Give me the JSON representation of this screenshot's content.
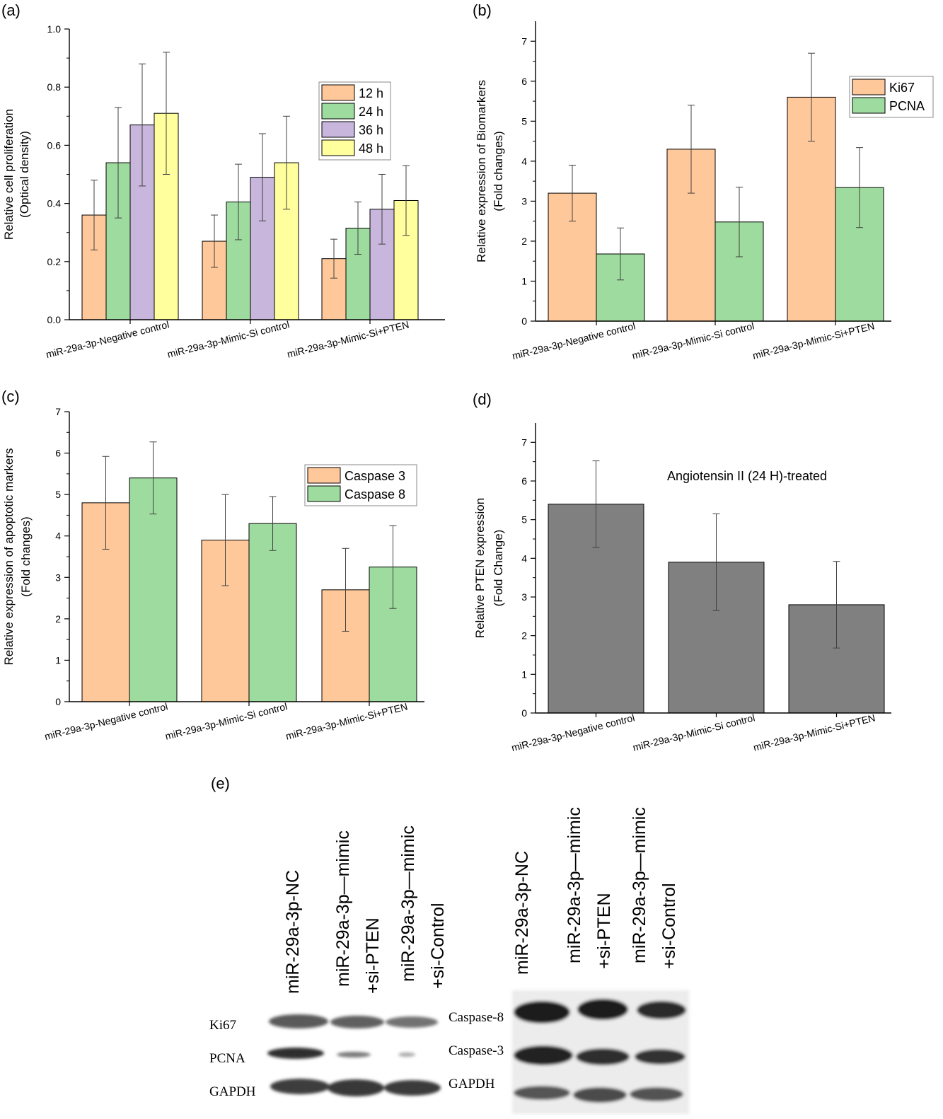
{
  "colors": {
    "orange": "#FFC89A",
    "green": "#9EDB9E",
    "purple": "#C8B6DD",
    "yellow": "#FFFF9E",
    "gray": "#808080",
    "axis": "#000000",
    "errorbar": "#404040"
  },
  "chart_data": [
    {
      "id": "a",
      "panel_label": "(a)",
      "type": "bar",
      "ylabel": "Relative cell proliferation",
      "ylabel2": "(Optical density)",
      "ylim": [
        0,
        1.0
      ],
      "yticks": [
        "0.0",
        "0.2",
        "0.4",
        "0.6",
        "0.8",
        "1.0"
      ],
      "categories": [
        "miR-29a-3p-Negative control",
        "miR-29a-3p-Mimic-Si control",
        "miR-29a-3p-Mimic-Si+PTEN"
      ],
      "legend_position": "top-right",
      "series": [
        {
          "name": "12 h",
          "color": "orange",
          "values": [
            0.36,
            0.27,
            0.21
          ],
          "errors": [
            0.12,
            0.09,
            0.067
          ]
        },
        {
          "name": "24 h",
          "color": "green",
          "values": [
            0.54,
            0.405,
            0.315
          ],
          "errors": [
            0.19,
            0.13,
            0.09
          ]
        },
        {
          "name": "36 h",
          "color": "purple",
          "values": [
            0.67,
            0.49,
            0.38
          ],
          "errors": [
            0.21,
            0.15,
            0.12
          ]
        },
        {
          "name": "48 h",
          "color": "yellow",
          "values": [
            0.71,
            0.54,
            0.41
          ],
          "errors": [
            0.21,
            0.16,
            0.12
          ]
        }
      ]
    },
    {
      "id": "b",
      "panel_label": "(b)",
      "type": "bar",
      "ylabel": "Relative expression of Biomarkers",
      "ylabel2": "(Fold changes)",
      "ylim": [
        0,
        7.5
      ],
      "yticks": [
        "0",
        "1",
        "2",
        "3",
        "4",
        "5",
        "6",
        "7"
      ],
      "categories": [
        "miR-29a-3p-Negative control",
        "miR-29a-3p-Mimic-Si control",
        "miR-29a-3p-Mimic-Si+PTEN"
      ],
      "legend_position": "top-right",
      "series": [
        {
          "name": "Ki67",
          "color": "orange",
          "values": [
            3.2,
            4.3,
            5.6
          ],
          "errors": [
            0.7,
            1.1,
            1.1
          ]
        },
        {
          "name": "PCNA",
          "color": "green",
          "values": [
            1.68,
            2.48,
            3.34
          ],
          "errors": [
            0.65,
            0.87,
            1.0
          ]
        }
      ]
    },
    {
      "id": "c",
      "panel_label": "(c)",
      "type": "bar",
      "ylabel": "Relative expression of apoptotic markers",
      "ylabel2": "(Fold changes)",
      "ylim": [
        0,
        7
      ],
      "yticks": [
        "0",
        "1",
        "2",
        "3",
        "4",
        "5",
        "6",
        "7"
      ],
      "categories": [
        "miR-29a-3p-Negative control",
        "miR-29a-3p-Mimic-Si control",
        "miR-29a-3p-Mimic-Si+PTEN"
      ],
      "legend_position": "top-right",
      "series": [
        {
          "name": "Caspase 3",
          "color": "orange",
          "values": [
            4.8,
            3.9,
            2.7
          ],
          "errors": [
            1.12,
            1.1,
            1.0
          ]
        },
        {
          "name": "Caspase 8",
          "color": "green",
          "values": [
            5.4,
            4.3,
            3.25
          ],
          "errors": [
            0.87,
            0.65,
            1.0
          ]
        }
      ]
    },
    {
      "id": "d",
      "panel_label": "(d)",
      "type": "bar",
      "ylabel": "Relative PTEN expression",
      "ylabel2": "(Fold Change)",
      "annotation": "Angiotensin II (24 H)-treated",
      "ylim": [
        0,
        7.5
      ],
      "yticks": [
        "0",
        "1",
        "2",
        "3",
        "4",
        "5",
        "6",
        "7"
      ],
      "categories": [
        "miR-29a-3p-Negative control",
        "miR-29a-3p-Mimic-Si control",
        "miR-29a-3p-Mimic-Si+PTEN"
      ],
      "series": [
        {
          "color": "gray",
          "values": [
            5.4,
            3.9,
            2.8
          ],
          "errors": [
            1.12,
            1.25,
            1.12
          ]
        }
      ]
    }
  ],
  "blot": {
    "panel_label": "(e)",
    "left_lanes": [
      {
        "line1": "miR-29a-3p-NC",
        "line2": ""
      },
      {
        "line1": "miR-29a-3p—mimic",
        "line2": "+si-PTEN"
      },
      {
        "line1": "miR-29a-3p—mimic",
        "line2": "+si-Control"
      }
    ],
    "right_lanes": [
      {
        "line1": "miR-29a-3p-NC",
        "line2": ""
      },
      {
        "line1": "miR-29a-3p—mimic",
        "line2": "+si-PTEN"
      },
      {
        "line1": "miR-29a-3p—mimic",
        "line2": "+si-Control"
      }
    ],
    "left_rows": [
      "Ki67",
      "PCNA",
      "GAPDH"
    ],
    "right_rows": [
      "Caspase-8",
      "Caspase-3",
      "GAPDH"
    ]
  }
}
